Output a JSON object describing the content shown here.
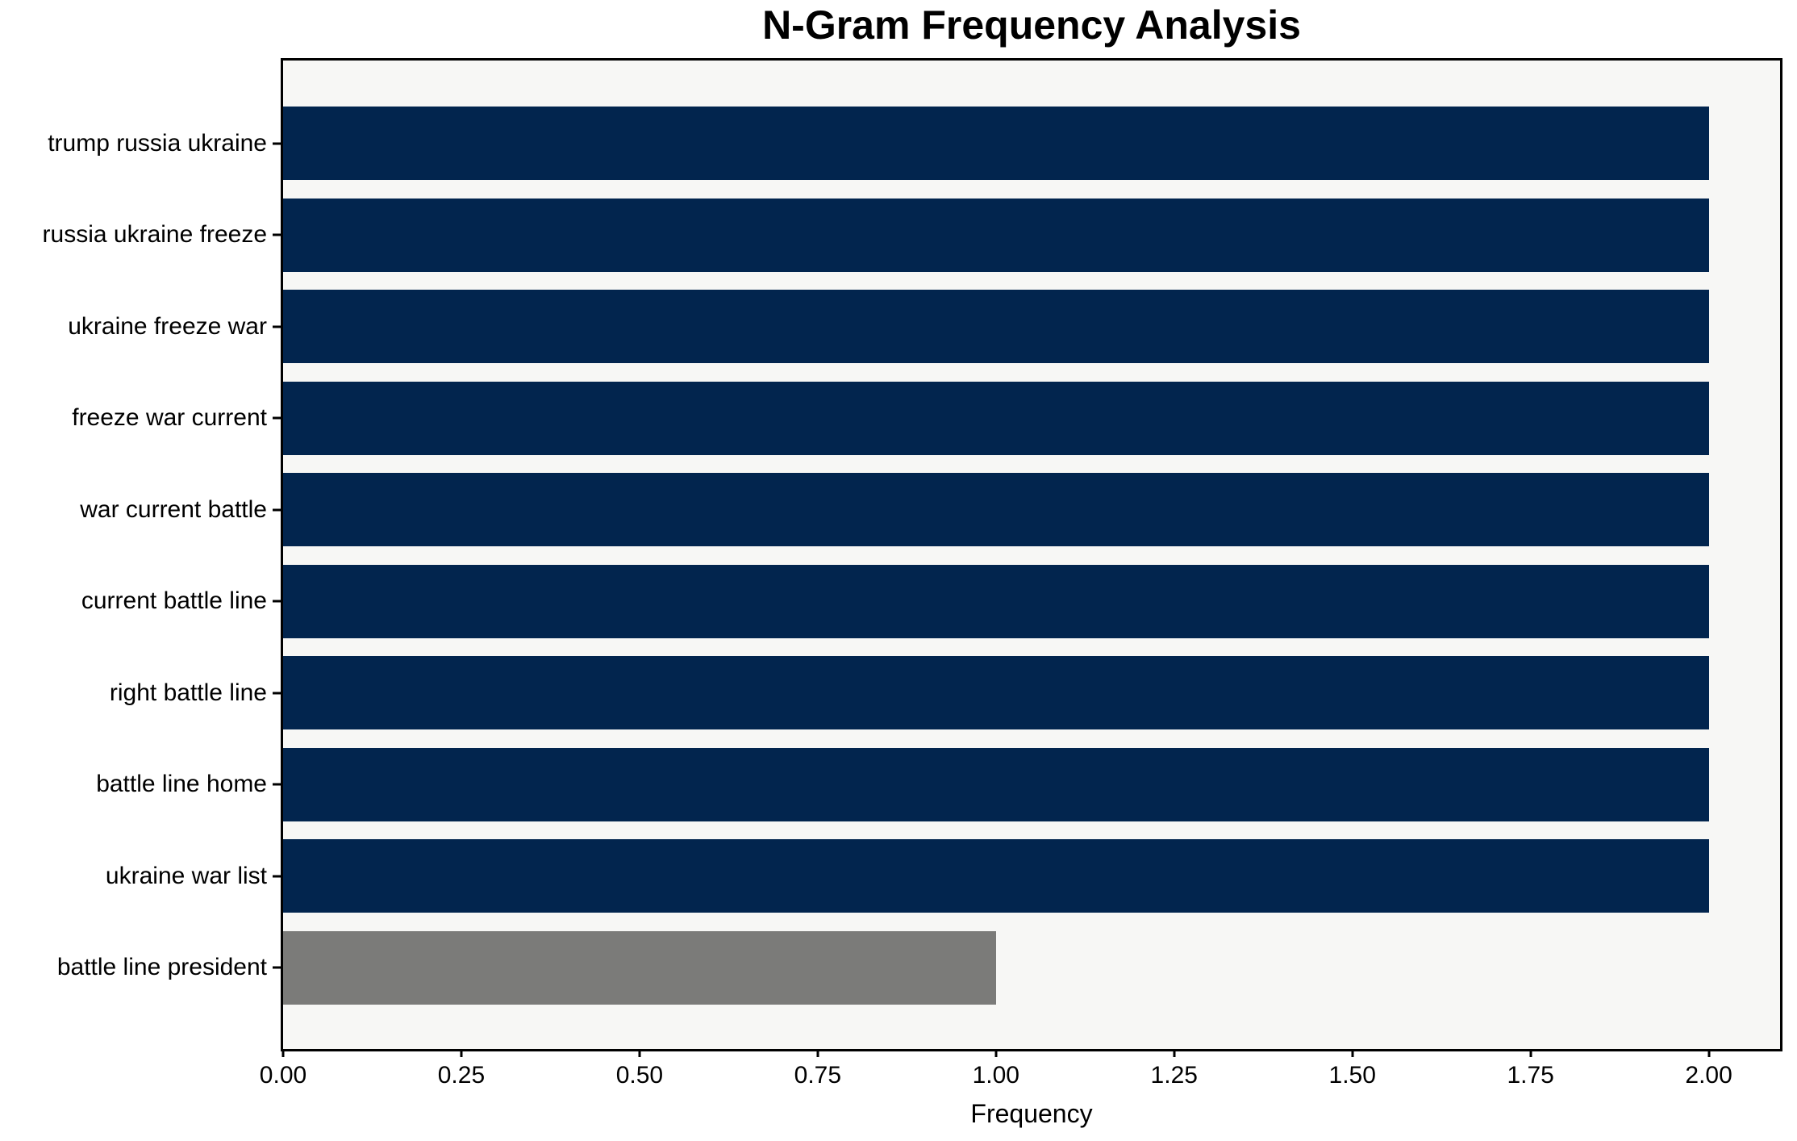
{
  "chart_data": {
    "type": "bar",
    "orientation": "horizontal",
    "title": "N-Gram Frequency Analysis",
    "xlabel": "Frequency",
    "ylabel": "",
    "categories": [
      "trump russia ukraine",
      "russia ukraine freeze",
      "ukraine freeze war",
      "freeze war current",
      "war current battle",
      "current battle line",
      "right battle line",
      "battle line home",
      "ukraine war list",
      "battle line president"
    ],
    "values": [
      2,
      2,
      2,
      2,
      2,
      2,
      2,
      2,
      2,
      1
    ],
    "bar_colors": [
      "#02254e",
      "#02254e",
      "#02254e",
      "#02254e",
      "#02254e",
      "#02254e",
      "#02254e",
      "#02254e",
      "#02254e",
      "#7b7b79"
    ],
    "xticks": [
      "0.00",
      "0.25",
      "0.50",
      "0.75",
      "1.00",
      "1.25",
      "1.50",
      "1.75",
      "2.00"
    ],
    "xlim": [
      0,
      2.1
    ],
    "grid": false,
    "legend_position": "none",
    "colors": {
      "bar_primary": "#02254e",
      "bar_secondary": "#7b7b79",
      "plot_background": "#f7f7f5",
      "spine": "#000000",
      "text": "#000000",
      "figure_background": "#ffffff"
    }
  }
}
